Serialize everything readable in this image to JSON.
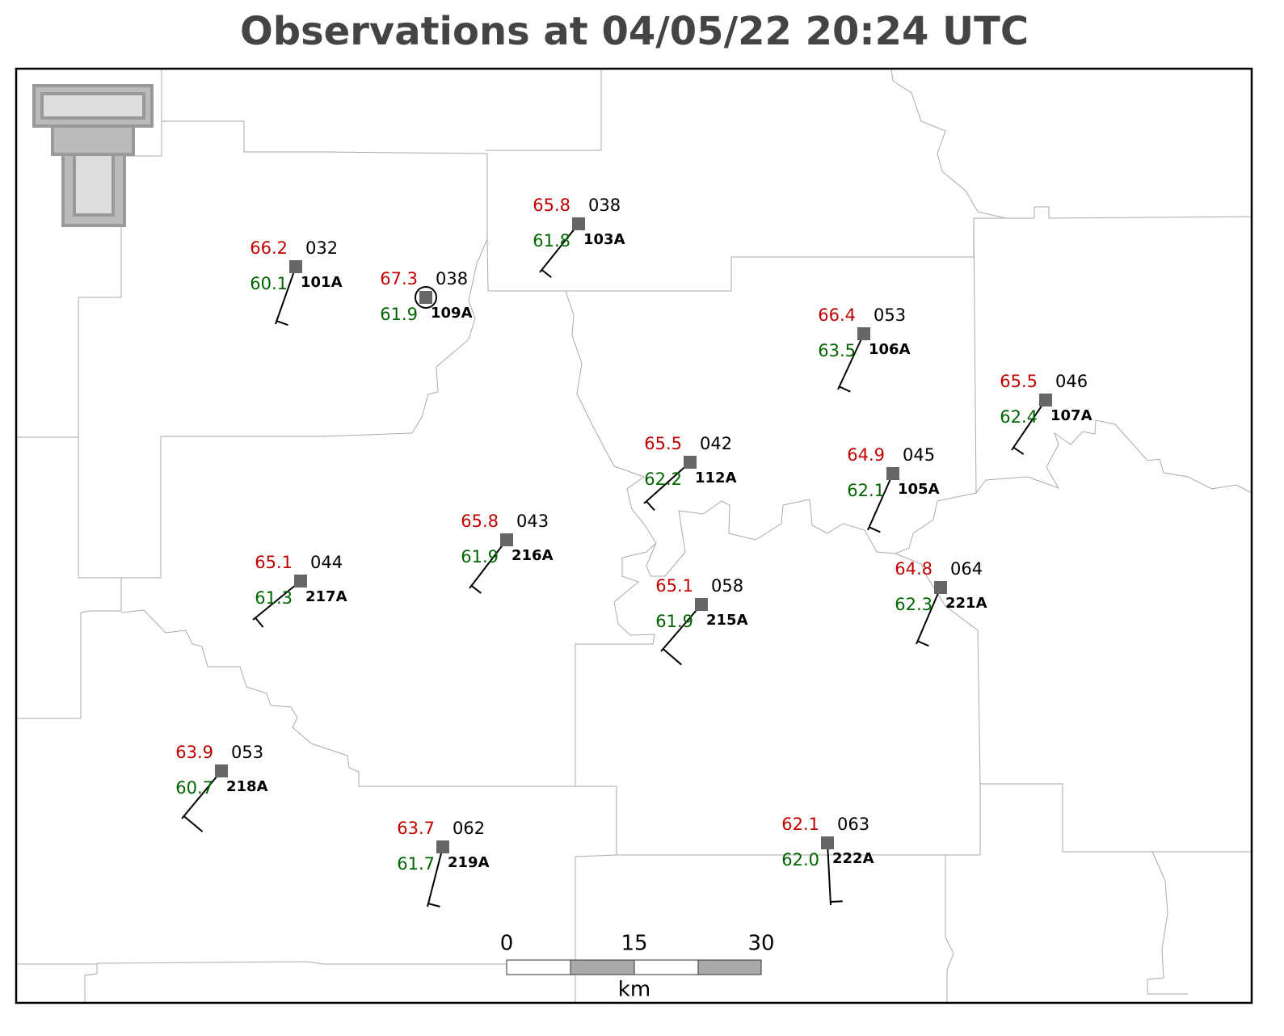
{
  "title": "Observations at 04/05/22 20:24 UTC",
  "stations": [
    {
      "id": "101A",
      "temperature": "66.2",
      "dewpoint": "60.1",
      "pressure": "032"
    },
    {
      "id": "109A",
      "temperature": "67.3",
      "dewpoint": "61.9",
      "pressure": "038"
    },
    {
      "id": "103A",
      "temperature": "65.8",
      "dewpoint": "61.8",
      "pressure": "038"
    },
    {
      "id": "106A",
      "temperature": "66.4",
      "dewpoint": "63.5",
      "pressure": "053"
    },
    {
      "id": "107A",
      "temperature": "65.5",
      "dewpoint": "62.4",
      "pressure": "046"
    },
    {
      "id": "112A",
      "temperature": "65.5",
      "dewpoint": "62.2",
      "pressure": "042"
    },
    {
      "id": "105A",
      "temperature": "64.9",
      "dewpoint": "62.1",
      "pressure": "045"
    },
    {
      "id": "216A",
      "temperature": "65.8",
      "dewpoint": "61.9",
      "pressure": "043"
    },
    {
      "id": "217A",
      "temperature": "65.1",
      "dewpoint": "61.3",
      "pressure": "044"
    },
    {
      "id": "215A",
      "temperature": "65.1",
      "dewpoint": "61.9",
      "pressure": "058"
    },
    {
      "id": "221A",
      "temperature": "64.8",
      "dewpoint": "62.3",
      "pressure": "064"
    },
    {
      "id": "218A",
      "temperature": "63.9",
      "dewpoint": "60.7",
      "pressure": "053"
    },
    {
      "id": "219A",
      "temperature": "63.7",
      "dewpoint": "61.7",
      "pressure": "062"
    },
    {
      "id": "222A",
      "temperature": "62.1",
      "dewpoint": "62.0",
      "pressure": "063"
    }
  ],
  "scale_bar": {
    "ticks": [
      "0",
      "15",
      "30"
    ],
    "unit": "km"
  }
}
